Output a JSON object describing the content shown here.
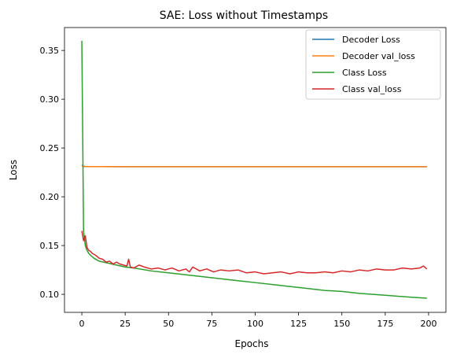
{
  "chart_data": {
    "type": "line",
    "title": "SAE: Loss without Timestamps",
    "xlabel": "Epochs",
    "ylabel": "Loss",
    "xlim": [
      -10,
      210
    ],
    "ylim": [
      0.0815,
      0.3735
    ],
    "xticks": [
      0,
      25,
      50,
      75,
      100,
      125,
      150,
      175,
      200
    ],
    "yticks": [
      0.1,
      0.15,
      0.2,
      0.25,
      0.3,
      0.35
    ],
    "grid": false,
    "legend_position": "top-right",
    "series": [
      {
        "name": "Decoder Loss",
        "color": "#1f77b4",
        "x": [
          0,
          1,
          2,
          5,
          10,
          25,
          50,
          100,
          150,
          199
        ],
        "y": [
          0.2325,
          0.2312,
          0.231,
          0.2309,
          0.2309,
          0.2308,
          0.2308,
          0.2308,
          0.2308,
          0.2308
        ]
      },
      {
        "name": "Decoder val_loss",
        "color": "#ff7f0e",
        "x": [
          0,
          1,
          2,
          5,
          10,
          25,
          50,
          100,
          150,
          199
        ],
        "y": [
          0.232,
          0.2311,
          0.231,
          0.2309,
          0.2309,
          0.2308,
          0.2308,
          0.2308,
          0.2308,
          0.2308
        ]
      },
      {
        "name": "Class Loss",
        "color": "#2ca02c",
        "x": [
          0,
          1,
          2,
          3,
          4,
          5,
          7,
          10,
          15,
          20,
          25,
          30,
          40,
          50,
          60,
          75,
          90,
          100,
          110,
          125,
          140,
          150,
          160,
          175,
          190,
          199
        ],
        "y": [
          0.36,
          0.165,
          0.15,
          0.145,
          0.142,
          0.14,
          0.137,
          0.134,
          0.132,
          0.13,
          0.128,
          0.127,
          0.124,
          0.122,
          0.12,
          0.117,
          0.114,
          0.112,
          0.11,
          0.107,
          0.104,
          0.103,
          0.101,
          0.099,
          0.097,
          0.096
        ]
      },
      {
        "name": "Class val_loss",
        "color": "#d62728",
        "x": [
          0,
          1,
          2,
          3,
          4,
          5,
          6,
          8,
          10,
          12,
          14,
          16,
          18,
          20,
          22,
          24,
          26,
          27,
          28,
          30,
          33,
          36,
          40,
          44,
          48,
          52,
          56,
          60,
          62,
          64,
          68,
          72,
          76,
          80,
          85,
          90,
          95,
          100,
          105,
          110,
          115,
          120,
          125,
          130,
          135,
          140,
          145,
          150,
          155,
          160,
          165,
          170,
          175,
          180,
          185,
          190,
          195,
          197,
          199
        ],
        "y": [
          0.165,
          0.155,
          0.16,
          0.148,
          0.145,
          0.144,
          0.142,
          0.14,
          0.137,
          0.136,
          0.133,
          0.134,
          0.131,
          0.133,
          0.131,
          0.13,
          0.129,
          0.136,
          0.128,
          0.127,
          0.13,
          0.128,
          0.126,
          0.127,
          0.125,
          0.127,
          0.124,
          0.126,
          0.123,
          0.128,
          0.124,
          0.126,
          0.123,
          0.125,
          0.124,
          0.125,
          0.122,
          0.123,
          0.121,
          0.122,
          0.123,
          0.121,
          0.123,
          0.122,
          0.122,
          0.123,
          0.122,
          0.124,
          0.123,
          0.125,
          0.124,
          0.126,
          0.125,
          0.125,
          0.127,
          0.126,
          0.127,
          0.129,
          0.126
        ]
      }
    ]
  }
}
